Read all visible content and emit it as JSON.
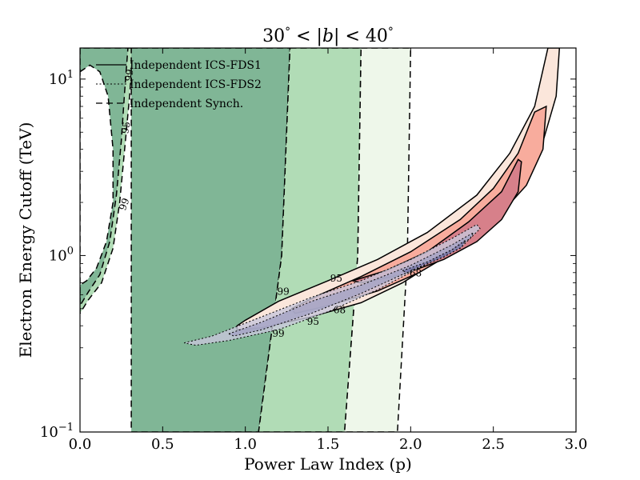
{
  "chart_data": {
    "type": "contour",
    "title": "30° < |b| < 40°",
    "title_parts": [
      "30",
      "°",
      " < |",
      "b",
      "| < 40",
      "°"
    ],
    "xlabel": "Power Law Index (p)",
    "ylabel": "Electron Energy Cutoff (TeV)",
    "xlim": [
      0.0,
      3.0
    ],
    "ylim": [
      0.1,
      15
    ],
    "yscale": "log",
    "x_ticks": [
      {
        "value": 0.0,
        "label": "0.0"
      },
      {
        "value": 0.5,
        "label": "0.5"
      },
      {
        "value": 1.0,
        "label": "1.0"
      },
      {
        "value": 1.5,
        "label": "1.5"
      },
      {
        "value": 2.0,
        "label": "2.0"
      },
      {
        "value": 2.5,
        "label": "2.5"
      },
      {
        "value": 3.0,
        "label": "3.0"
      }
    ],
    "y_ticks": [
      {
        "value": 0.1,
        "base": "10",
        "exp": "−1"
      },
      {
        "value": 1,
        "base": "10",
        "exp": "0"
      },
      {
        "value": 10,
        "base": "10",
        "exp": "1"
      }
    ],
    "legend": {
      "position": "top-left",
      "entries": [
        {
          "label": "Independent ICS-FDS1",
          "style": "solid"
        },
        {
          "label": "Independent ICS-FDS2",
          "style": "dotted"
        },
        {
          "label": "Independent Synch.",
          "style": "dashed"
        }
      ]
    },
    "colors": {
      "synch_dark": "#80b696",
      "synch_mid": "#b1dcb6",
      "synch_light": "#eef7ea",
      "ics_light": "#fbe6db",
      "ics_mid": "#f8ac9d",
      "ics_dark": "#d7808a",
      "fds2_light": "#c8c7db",
      "fds2_mid": "#a4a3c4",
      "fds2_dark": "#7474a6",
      "ink": "#000000"
    },
    "confidence_levels": [
      "68",
      "95",
      "99"
    ],
    "contours": [
      {
        "name": "Independent Synch.",
        "style": "dashed",
        "level": "99",
        "fill": "synch_mid",
        "points": [
          [
            0.0,
            15
          ],
          [
            0.0,
            0.47
          ],
          [
            0.05,
            0.56
          ],
          [
            0.13,
            0.7
          ],
          [
            0.2,
            1.1
          ],
          [
            0.24,
            2.0
          ],
          [
            0.27,
            4.0
          ],
          [
            0.3,
            8.0
          ],
          [
            0.32,
            15
          ],
          [
            0.32,
            15
          ],
          [
            0.0,
            15
          ]
        ]
      },
      {
        "name": "Independent Synch.",
        "style": "dashed",
        "level": "95",
        "fill": "synch_dark",
        "points": [
          [
            0.0,
            15
          ],
          [
            0.0,
            0.52
          ],
          [
            0.05,
            0.62
          ],
          [
            0.12,
            0.78
          ],
          [
            0.18,
            1.2
          ],
          [
            0.22,
            2.2
          ],
          [
            0.25,
            4.5
          ],
          [
            0.27,
            8.5
          ],
          [
            0.29,
            15
          ]
        ]
      },
      {
        "name": "Independent Synch.",
        "style": "dashed",
        "level": "68",
        "fill": "#ffffff",
        "points": [
          [
            0.0,
            11
          ],
          [
            0.06,
            12
          ],
          [
            0.12,
            11
          ],
          [
            0.17,
            8
          ],
          [
            0.2,
            4.0
          ],
          [
            0.2,
            2.0
          ],
          [
            0.16,
            1.2
          ],
          [
            0.1,
            0.85
          ],
          [
            0.04,
            0.72
          ],
          [
            0.0,
            0.68
          ]
        ]
      },
      {
        "name": "Independent Synch.",
        "style": "dashed",
        "level": "68",
        "fill": "synch_dark",
        "points": [
          [
            0.31,
            15
          ],
          [
            0.37,
            15
          ],
          [
            1.27,
            15
          ],
          [
            1.22,
            1.0
          ],
          [
            1.08,
            0.1
          ],
          [
            0.31,
            0.1
          ]
        ]
      },
      {
        "name": "Independent Synch.",
        "style": "dashed",
        "level": "95",
        "fill": "synch_mid",
        "points": [
          [
            1.27,
            15
          ],
          [
            1.7,
            15
          ],
          [
            1.68,
            1.0
          ],
          [
            1.6,
            0.1
          ],
          [
            1.08,
            0.1
          ],
          [
            1.22,
            1.0
          ]
        ]
      },
      {
        "name": "Independent Synch.",
        "style": "dashed",
        "level": "99",
        "fill": "synch_light",
        "points": [
          [
            1.7,
            15
          ],
          [
            2.0,
            15
          ],
          [
            1.98,
            1.0
          ],
          [
            1.92,
            0.1
          ],
          [
            1.6,
            0.1
          ],
          [
            1.68,
            1.0
          ]
        ]
      },
      {
        "name": "Independent ICS-FDS1",
        "style": "solid",
        "level": "99",
        "fill": "ics_light",
        "points": [
          [
            0.95,
            0.4
          ],
          [
            1.0,
            0.43
          ],
          [
            1.2,
            0.55
          ],
          [
            1.5,
            0.72
          ],
          [
            1.8,
            0.95
          ],
          [
            2.1,
            1.35
          ],
          [
            2.4,
            2.2
          ],
          [
            2.6,
            3.8
          ],
          [
            2.75,
            7.0
          ],
          [
            2.83,
            15
          ],
          [
            2.9,
            15
          ],
          [
            2.88,
            8.0
          ],
          [
            2.78,
            3.8
          ],
          [
            2.6,
            2.0
          ],
          [
            2.4,
            1.35
          ],
          [
            2.15,
            0.92
          ],
          [
            1.95,
            0.7
          ],
          [
            1.7,
            0.54
          ],
          [
            1.4,
            0.45
          ],
          [
            1.1,
            0.39
          ],
          [
            0.95,
            0.38
          ]
        ]
      },
      {
        "name": "Independent ICS-FDS1",
        "style": "solid",
        "level": "95",
        "fill": "ics_mid",
        "points": [
          [
            1.28,
            0.5
          ],
          [
            1.45,
            0.6
          ],
          [
            1.7,
            0.76
          ],
          [
            2.0,
            1.05
          ],
          [
            2.3,
            1.6
          ],
          [
            2.5,
            2.4
          ],
          [
            2.65,
            3.8
          ],
          [
            2.75,
            6.5
          ],
          [
            2.82,
            7.0
          ],
          [
            2.8,
            4.0
          ],
          [
            2.7,
            2.5
          ],
          [
            2.5,
            1.55
          ],
          [
            2.3,
            1.1
          ],
          [
            2.05,
            0.8
          ],
          [
            1.8,
            0.63
          ],
          [
            1.5,
            0.52
          ],
          [
            1.3,
            0.47
          ]
        ]
      },
      {
        "name": "Independent ICS-FDS1",
        "style": "solid",
        "level": "68",
        "fill": "ics_dark",
        "points": [
          [
            1.65,
            0.72
          ],
          [
            1.85,
            0.82
          ],
          [
            2.1,
            1.05
          ],
          [
            2.35,
            1.55
          ],
          [
            2.55,
            2.3
          ],
          [
            2.65,
            3.5
          ],
          [
            2.67,
            3.4
          ],
          [
            2.65,
            2.3
          ],
          [
            2.55,
            1.6
          ],
          [
            2.4,
            1.2
          ],
          [
            2.2,
            0.95
          ],
          [
            1.95,
            0.78
          ],
          [
            1.7,
            0.7
          ]
        ]
      },
      {
        "name": "Independent ICS-FDS2",
        "style": "dotted",
        "level": "99",
        "fill": "fds2_light",
        "points": [
          [
            0.63,
            0.32
          ],
          [
            0.8,
            0.35
          ],
          [
            1.1,
            0.45
          ],
          [
            1.4,
            0.58
          ],
          [
            1.7,
            0.72
          ],
          [
            2.0,
            0.95
          ],
          [
            2.25,
            1.25
          ],
          [
            2.4,
            1.5
          ],
          [
            2.42,
            1.42
          ],
          [
            2.3,
            1.1
          ],
          [
            2.05,
            0.85
          ],
          [
            1.8,
            0.64
          ],
          [
            1.5,
            0.48
          ],
          [
            1.2,
            0.38
          ],
          [
            0.9,
            0.33
          ],
          [
            0.7,
            0.31
          ]
        ]
      },
      {
        "name": "Independent ICS-FDS2",
        "style": "dotted",
        "level": "95",
        "fill": "fds2_mid",
        "points": [
          [
            0.9,
            0.36
          ],
          [
            1.1,
            0.42
          ],
          [
            1.4,
            0.55
          ],
          [
            1.7,
            0.68
          ],
          [
            2.0,
            0.88
          ],
          [
            2.25,
            1.15
          ],
          [
            2.38,
            1.35
          ],
          [
            2.36,
            1.25
          ],
          [
            2.2,
            1.0
          ],
          [
            1.95,
            0.78
          ],
          [
            1.7,
            0.61
          ],
          [
            1.4,
            0.47
          ],
          [
            1.1,
            0.38
          ],
          [
            0.93,
            0.35
          ]
        ]
      },
      {
        "name": "Independent ICS-FDS2",
        "style": "dotted",
        "level": "68",
        "fill": "fds2_dark",
        "points": [
          [
            1.95,
            0.82
          ],
          [
            2.1,
            0.92
          ],
          [
            2.25,
            1.08
          ],
          [
            2.33,
            1.22
          ],
          [
            2.31,
            1.12
          ],
          [
            2.2,
            0.98
          ],
          [
            2.05,
            0.86
          ],
          [
            1.98,
            0.8
          ]
        ]
      }
    ],
    "contour_labels": [
      {
        "text": "99",
        "x": 0.27,
        "y": 1.95,
        "rotate": -70
      },
      {
        "text": "95",
        "x": 0.28,
        "y": 5.3,
        "rotate": -80
      },
      {
        "text": "99",
        "x": 0.3,
        "y": 10.5,
        "rotate": -80
      },
      {
        "text": "95",
        "x": 1.55,
        "y": 0.74,
        "rotate": 0
      },
      {
        "text": "99",
        "x": 1.23,
        "y": 0.62,
        "rotate": 0
      },
      {
        "text": "68",
        "x": 2.03,
        "y": 0.79,
        "rotate": 0
      },
      {
        "text": "68",
        "x": 1.57,
        "y": 0.49,
        "rotate": 0
      },
      {
        "text": "95",
        "x": 1.41,
        "y": 0.42,
        "rotate": 0
      },
      {
        "text": "99",
        "x": 1.2,
        "y": 0.36,
        "rotate": 0
      }
    ]
  }
}
